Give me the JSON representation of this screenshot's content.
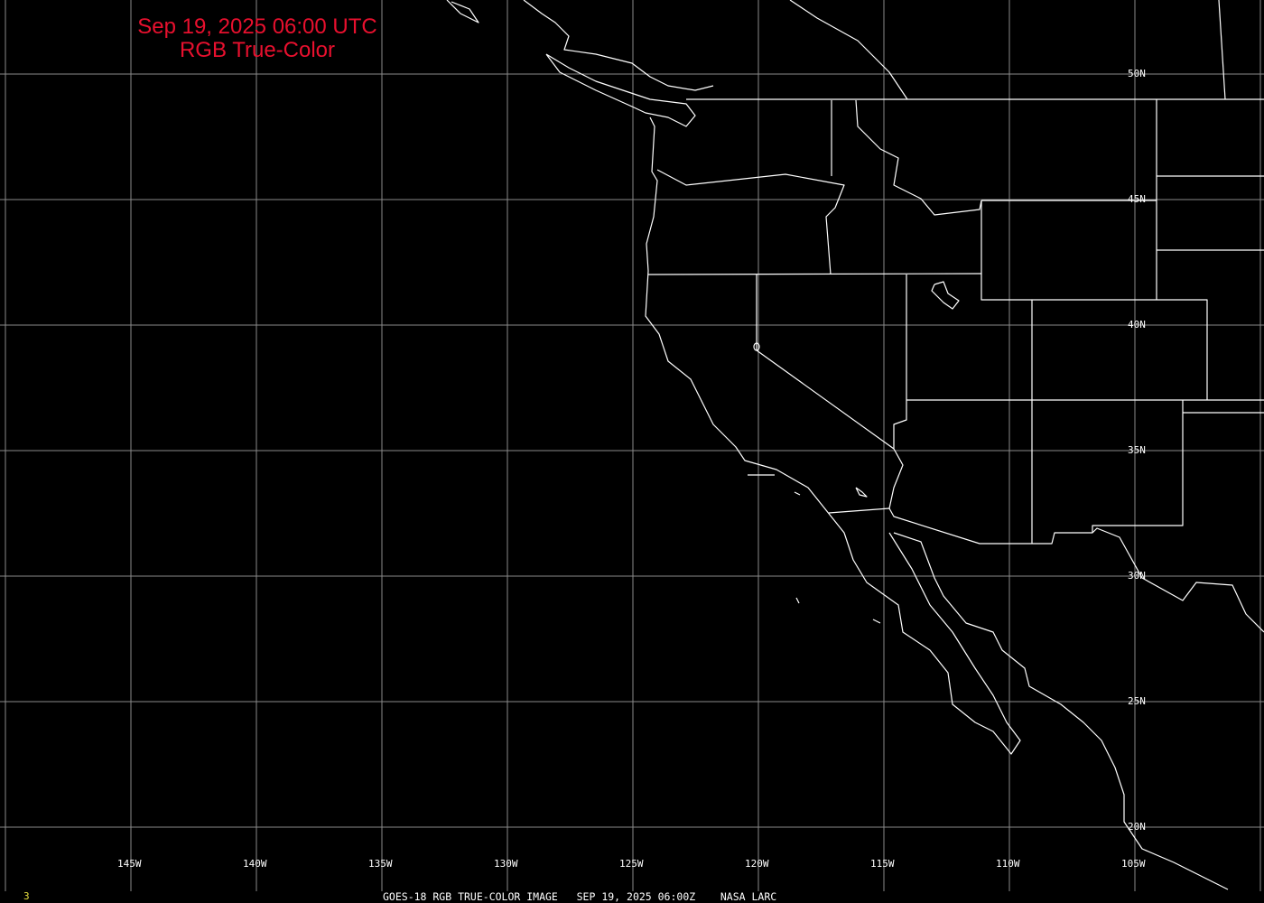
{
  "header": {
    "line1": "Sep 19, 2025 06:00 UTC",
    "line2": "RGB True-Color",
    "color": "#e8102e"
  },
  "grid": {
    "longitudes": [
      "145W",
      "140W",
      "135W",
      "130W",
      "125W",
      "120W",
      "115W",
      "110W",
      "105W"
    ],
    "latitudes": [
      "50N",
      "45N",
      "40N",
      "35N",
      "30N",
      "25N",
      "20N"
    ]
  },
  "footer": {
    "caption": "GOES-18 RGB TRUE-COLOR IMAGE   SEP 19, 2025 06:00Z    NASA LARC",
    "frame_number": "3"
  }
}
